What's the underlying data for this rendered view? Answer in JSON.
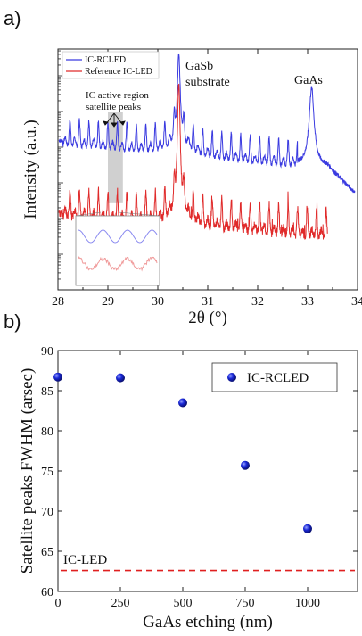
{
  "panels": {
    "a_label": "a)",
    "b_label": "b)"
  },
  "chart_data": [
    {
      "type": "line",
      "xlabel": "2θ (°)",
      "ylabel": "Intensity (a.u.)",
      "xlim": [
        28,
        34
      ],
      "xticks": [
        "28",
        "29",
        "30",
        "31",
        "32",
        "33",
        "34"
      ],
      "y_scale": "log",
      "legend_position": "top-left",
      "series": [
        {
          "name": "IC-RCLED",
          "color": "#3a3ae0",
          "features": {
            "background_start": 0.62,
            "background_end": 0.5,
            "satellite_period_deg": 0.19,
            "satellite_amplitude": 0.08,
            "satellite_range": [
              28.1,
              32.8
            ],
            "gasb_peak_x": 30.42,
            "gasb_peak_height": 0.92,
            "gaas_peak_x": 33.08,
            "gaas_peak_height": 0.84
          }
        },
        {
          "name": "Reference IC-LED",
          "color": "#e02a2a",
          "features": {
            "background_start": 0.32,
            "background_end": 0.22,
            "satellite_period_deg": 0.19,
            "satellite_amplitude": 0.09,
            "satellite_range": [
              28.1,
              33.4
            ],
            "gasb_peak_x": 30.42,
            "gasb_peak_height": 0.8,
            "end_x": 33.4
          }
        }
      ],
      "annotations": {
        "gasb": [
          "GaSb",
          "substrate"
        ],
        "gaas": "GaAs",
        "satellite": [
          "IC active region",
          "satellite peaks"
        ]
      },
      "highlight_band_x": [
        29.0,
        29.3
      ],
      "inset": {
        "series_colors": [
          "#8a8af0",
          "#f09a9a"
        ]
      }
    },
    {
      "type": "scatter",
      "xlabel": "GaAs etching (nm)",
      "ylabel": "Satellite peaks FWHM (arsec)",
      "xlim": [
        0,
        1200
      ],
      "ylim": [
        60,
        90
      ],
      "xticks": [
        "0",
        "250",
        "500",
        "750",
        "1000"
      ],
      "yticks": [
        "60",
        "65",
        "70",
        "75",
        "80",
        "85",
        "90"
      ],
      "legend_position": "top-right",
      "series": [
        {
          "name": "IC-RCLED",
          "color": "#1a28d8",
          "x": [
            0,
            250,
            500,
            750,
            1000
          ],
          "y": [
            86.7,
            86.6,
            83.5,
            75.7,
            67.8
          ]
        }
      ],
      "reference_line": {
        "label": "IC-LED",
        "y": 62.6,
        "color": "#e02020",
        "style": "dashed"
      }
    }
  ]
}
